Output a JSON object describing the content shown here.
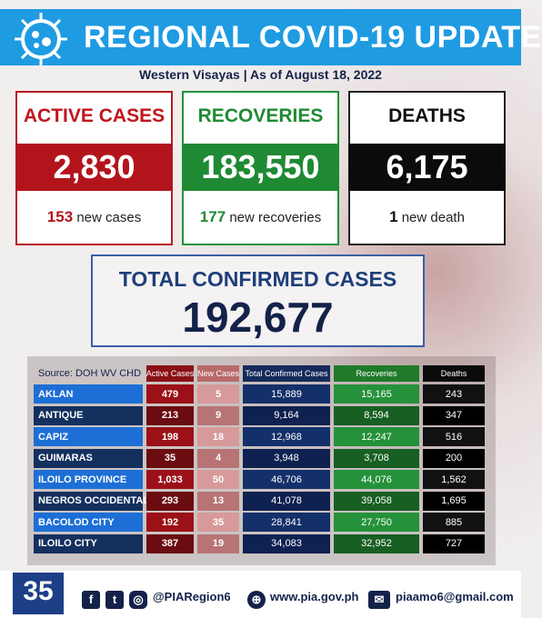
{
  "header": {
    "title": "REGIONAL COVID-19 UPDATE",
    "subtitle": "Western Visayas | As of August 18, 2022"
  },
  "cards": [
    {
      "label": "ACTIVE CASES",
      "value": "2,830",
      "new_count": "153",
      "new_text": "new cases"
    },
    {
      "label": "RECOVERIES",
      "value": "183,550",
      "new_count": "177",
      "new_text": "new recoveries"
    },
    {
      "label": "DEATHS",
      "value": "6,175",
      "new_count": "1",
      "new_text": "new death"
    }
  ],
  "total": {
    "label": "TOTAL CONFIRMED CASES",
    "value": "192,677"
  },
  "table": {
    "source": "Source: DOH WV CHD",
    "columns": [
      "Active Cases",
      "New Cases",
      "Total Confirmed Cases",
      "Recoveries",
      "Deaths"
    ],
    "rows": [
      [
        "AKLAN",
        "479",
        "5",
        "15,889",
        "15,165",
        "243"
      ],
      [
        "ANTIQUE",
        "213",
        "9",
        "9,164",
        "8,594",
        "347"
      ],
      [
        "CAPIZ",
        "198",
        "18",
        "12,968",
        "12,247",
        "516"
      ],
      [
        "GUIMARAS",
        "35",
        "4",
        "3,948",
        "3,708",
        "200"
      ],
      [
        "ILOILO PROVINCE",
        "1,033",
        "50",
        "46,706",
        "44,076",
        "1,562"
      ],
      [
        "NEGROS OCCIDENTAL",
        "293",
        "13",
        "41,078",
        "39,058",
        "1,695"
      ],
      [
        "BACOLOD CITY",
        "192",
        "35",
        "28,841",
        "27,750",
        "885"
      ],
      [
        "ILOILO CITY",
        "387",
        "19",
        "34,083",
        "32,952",
        "727"
      ]
    ]
  },
  "footer": {
    "logo": "35",
    "handle": "@PIARegion6",
    "website": "www.pia.gov.ph",
    "email": "piaamo6@gmail.com"
  }
}
